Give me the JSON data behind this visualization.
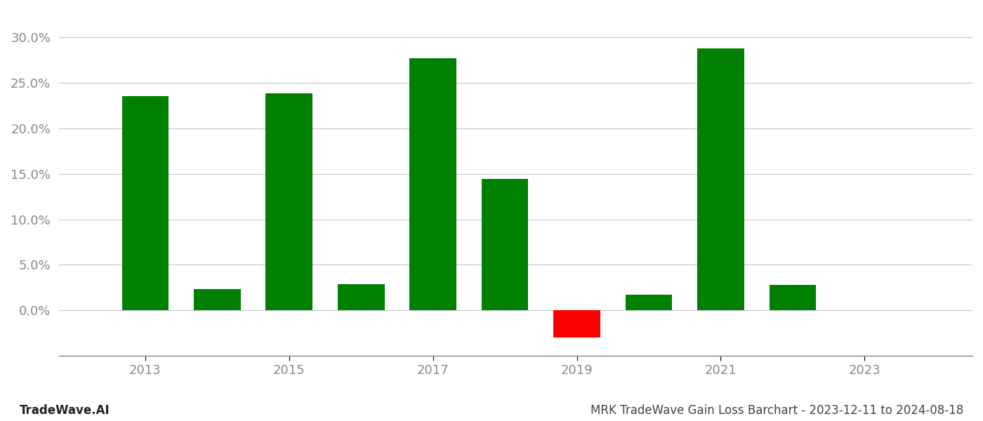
{
  "years": [
    2013,
    2014,
    2015,
    2016,
    2017,
    2018,
    2019,
    2020,
    2021,
    2022,
    2023
  ],
  "values": [
    0.235,
    0.023,
    0.238,
    0.029,
    0.277,
    0.144,
    -0.03,
    0.017,
    0.288,
    0.028,
    null
  ],
  "bar_colors": [
    "#008000",
    "#008000",
    "#008000",
    "#008000",
    "#008000",
    "#008000",
    "#ff0000",
    "#008000",
    "#008000",
    "#008000",
    null
  ],
  "title": "MRK TradeWave Gain Loss Barchart - 2023-12-11 to 2024-08-18",
  "watermark": "TradeWave.AI",
  "ylim": [
    -0.05,
    0.32
  ],
  "yticks": [
    0.0,
    0.05,
    0.1,
    0.15,
    0.2,
    0.25,
    0.3
  ],
  "xticks": [
    2013,
    2015,
    2017,
    2019,
    2021,
    2023
  ],
  "xlim": [
    2011.8,
    2024.5
  ],
  "background_color": "#ffffff",
  "grid_color": "#c8c8c8",
  "bar_width": 0.65,
  "title_fontsize": 12,
  "watermark_fontsize": 12,
  "axis_fontsize": 13
}
